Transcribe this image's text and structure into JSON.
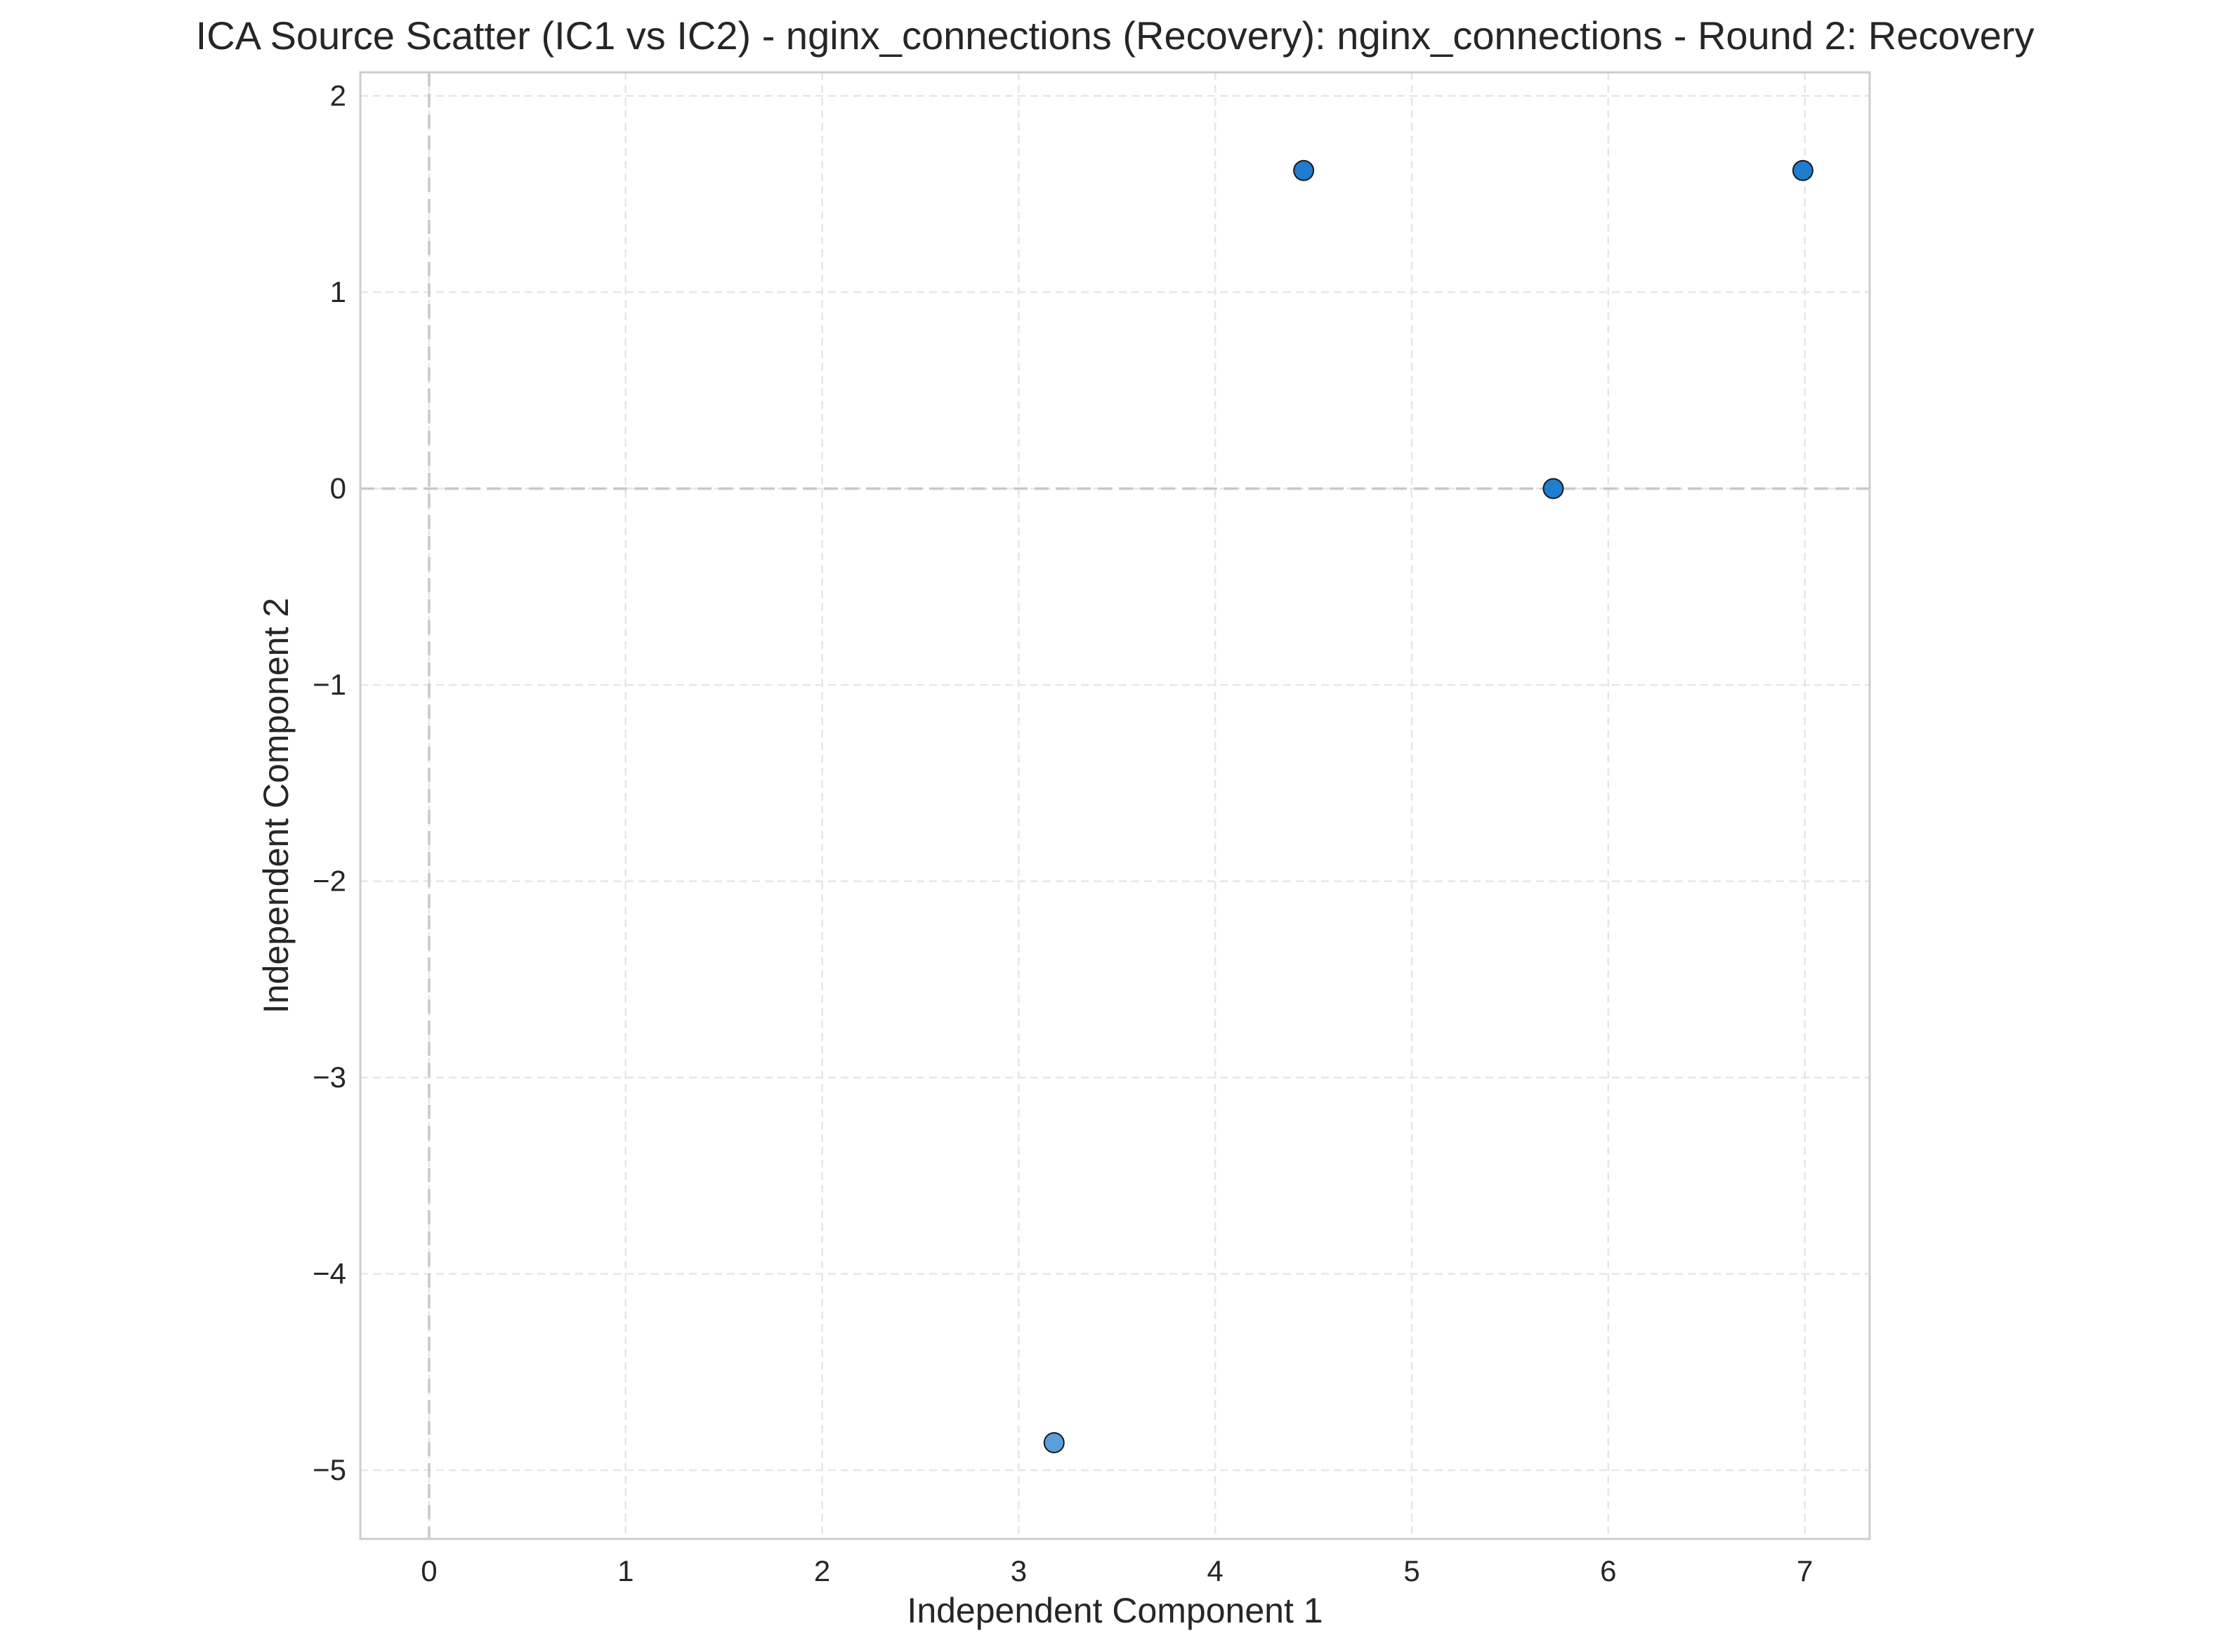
{
  "chart_data": {
    "type": "scatter",
    "title": "ICA Source Scatter (IC1 vs IC2) - nginx_connections (Recovery): nginx_connections - Round 2: Recovery",
    "xlabel": "Independent Component 1",
    "ylabel": "Independent Component 2",
    "xlim": [
      -0.35,
      7.33
    ],
    "ylim": [
      -5.35,
      2.12
    ],
    "xticks": [
      0,
      1,
      2,
      3,
      4,
      5,
      6,
      7
    ],
    "yticks": [
      -5,
      -4,
      -3,
      -2,
      -1,
      0,
      1,
      2
    ],
    "xtick_labels": [
      "0",
      "1",
      "2",
      "3",
      "4",
      "5",
      "6",
      "7"
    ],
    "ytick_labels": [
      "−5",
      "−4",
      "−3",
      "−2",
      "−1",
      "0",
      "1",
      "2"
    ],
    "grid": true,
    "reference_lines": {
      "x": 0,
      "y": 0
    },
    "points": [
      {
        "x": 4.45,
        "y": 1.62,
        "color": "#1f7ccf"
      },
      {
        "x": 6.99,
        "y": 1.62,
        "color": "#1f7ccf"
      },
      {
        "x": 5.72,
        "y": 0.0,
        "color": "#1f7ccf"
      },
      {
        "x": 3.18,
        "y": -4.86,
        "color": "#5a9fdc"
      }
    ],
    "colors": {
      "grid": "#e6e6e6",
      "reference": "#c8c8c8",
      "frame": "#cccccc",
      "marker_edge": "#1a1a1a"
    }
  }
}
